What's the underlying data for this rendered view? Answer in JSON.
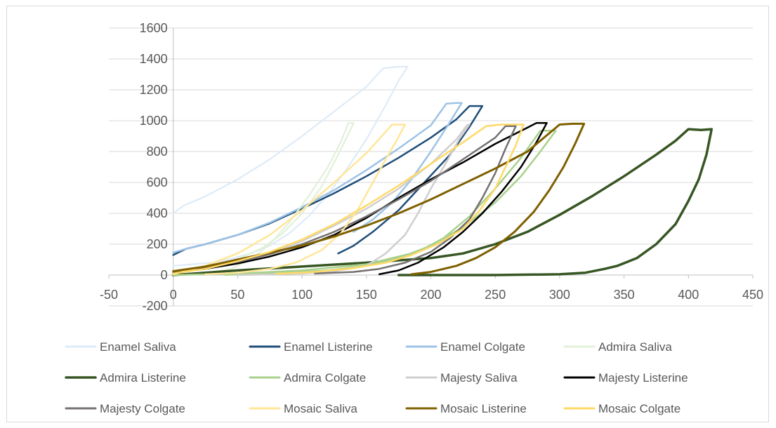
{
  "chart_data": {
    "type": "line",
    "title": "",
    "xlabel": "",
    "ylabel": "",
    "xlim": [
      -50,
      450
    ],
    "ylim": [
      -200,
      1600
    ],
    "x_ticks": [
      -50,
      0,
      50,
      100,
      150,
      200,
      250,
      300,
      350,
      400,
      450
    ],
    "y_ticks": [
      -200,
      0,
      200,
      400,
      600,
      800,
      1000,
      1200,
      1400,
      1600
    ],
    "grid": "horizontal",
    "legend_position": "bottom",
    "series": [
      {
        "name": "Enamel Saliva",
        "color": "#deebf7",
        "width": 2.2,
        "points": [
          [
            0,
            400
          ],
          [
            8,
            450
          ],
          [
            25,
            510
          ],
          [
            50,
            620
          ],
          [
            75,
            750
          ],
          [
            100,
            900
          ],
          [
            125,
            1060
          ],
          [
            150,
            1220
          ],
          [
            163,
            1340
          ],
          [
            175,
            1350
          ],
          [
            182,
            1350
          ],
          [
            175,
            1260
          ],
          [
            165,
            1100
          ],
          [
            150,
            880
          ],
          [
            135,
            690
          ],
          [
            120,
            520
          ],
          [
            105,
            380
          ],
          [
            90,
            270
          ],
          [
            75,
            190
          ],
          [
            60,
            140
          ],
          [
            45,
            105
          ],
          [
            30,
            80
          ],
          [
            15,
            70
          ],
          [
            0,
            60
          ]
        ]
      },
      {
        "name": "Enamel Listerine",
        "color": "#1f4e79",
        "width": 2.5,
        "points": [
          [
            0,
            130
          ],
          [
            10,
            170
          ],
          [
            25,
            200
          ],
          [
            50,
            260
          ],
          [
            75,
            335
          ],
          [
            100,
            430
          ],
          [
            125,
            530
          ],
          [
            150,
            640
          ],
          [
            175,
            760
          ],
          [
            200,
            890
          ],
          [
            220,
            1010
          ],
          [
            230,
            1095
          ],
          [
            240,
            1095
          ],
          [
            230,
            960
          ],
          [
            215,
            780
          ],
          [
            195,
            600
          ],
          [
            175,
            420
          ],
          [
            155,
            280
          ],
          [
            140,
            190
          ],
          [
            128,
            140
          ]
        ]
      },
      {
        "name": "Enamel Colgate",
        "color": "#9dc3e6",
        "width": 2.5,
        "points": [
          [
            0,
            145
          ],
          [
            10,
            170
          ],
          [
            25,
            200
          ],
          [
            50,
            260
          ],
          [
            75,
            340
          ],
          [
            100,
            440
          ],
          [
            125,
            550
          ],
          [
            150,
            680
          ],
          [
            175,
            820
          ],
          [
            200,
            970
          ],
          [
            212,
            1110
          ],
          [
            220,
            1115
          ],
          [
            224,
            1115
          ],
          [
            214,
            980
          ],
          [
            200,
            800
          ],
          [
            185,
            620
          ],
          [
            170,
            470
          ],
          [
            155,
            360
          ],
          [
            140,
            280
          ]
        ]
      },
      {
        "name": "Admira Saliva",
        "color": "#e2f0d9",
        "width": 2.2,
        "points": [
          [
            0,
            0
          ],
          [
            25,
            10
          ],
          [
            45,
            40
          ],
          [
            60,
            100
          ],
          [
            75,
            200
          ],
          [
            90,
            340
          ],
          [
            105,
            510
          ],
          [
            120,
            700
          ],
          [
            130,
            860
          ],
          [
            136,
            985
          ],
          [
            140,
            985
          ],
          [
            134,
            880
          ],
          [
            125,
            730
          ],
          [
            115,
            570
          ],
          [
            100,
            400
          ],
          [
            85,
            270
          ],
          [
            70,
            180
          ],
          [
            55,
            120
          ],
          [
            40,
            80
          ],
          [
            20,
            50
          ],
          [
            5,
            30
          ]
        ]
      },
      {
        "name": "Admira Listerine",
        "color": "#375623",
        "width": 3.5,
        "points": [
          [
            0,
            0
          ],
          [
            50,
            30
          ],
          [
            100,
            55
          ],
          [
            150,
            80
          ],
          [
            200,
            110
          ],
          [
            225,
            140
          ],
          [
            250,
            200
          ],
          [
            275,
            280
          ],
          [
            300,
            390
          ],
          [
            325,
            510
          ],
          [
            350,
            640
          ],
          [
            375,
            780
          ],
          [
            390,
            870
          ],
          [
            400,
            945
          ],
          [
            410,
            940
          ],
          [
            418,
            945
          ],
          [
            414,
            780
          ],
          [
            408,
            620
          ],
          [
            400,
            480
          ],
          [
            390,
            330
          ],
          [
            375,
            200
          ],
          [
            360,
            110
          ],
          [
            345,
            60
          ],
          [
            335,
            40
          ],
          [
            320,
            15
          ],
          [
            300,
            5
          ],
          [
            250,
            0
          ],
          [
            175,
            0
          ]
        ]
      },
      {
        "name": "Admira Colgate",
        "color": "#a9d18e",
        "width": 2.5,
        "points": [
          [
            0,
            0
          ],
          [
            50,
            10
          ],
          [
            100,
            30
          ],
          [
            150,
            70
          ],
          [
            190,
            150
          ],
          [
            210,
            240
          ],
          [
            230,
            380
          ],
          [
            250,
            560
          ],
          [
            270,
            760
          ],
          [
            285,
            935
          ],
          [
            292,
            935
          ],
          [
            297,
            935
          ],
          [
            285,
            800
          ],
          [
            270,
            640
          ],
          [
            250,
            470
          ],
          [
            225,
            310
          ],
          [
            200,
            190
          ],
          [
            175,
            110
          ],
          [
            150,
            60
          ],
          [
            120,
            30
          ],
          [
            80,
            10
          ],
          [
            40,
            2
          ]
        ]
      },
      {
        "name": "Majesty Saliva",
        "color": "#d0cece",
        "width": 2.5,
        "points": [
          [
            0,
            20
          ],
          [
            25,
            40
          ],
          [
            50,
            80
          ],
          [
            75,
            140
          ],
          [
            100,
            220
          ],
          [
            125,
            320
          ],
          [
            150,
            430
          ],
          [
            175,
            560
          ],
          [
            200,
            720
          ],
          [
            220,
            880
          ],
          [
            228,
            970
          ],
          [
            230,
            975
          ],
          [
            222,
            880
          ],
          [
            212,
            730
          ],
          [
            200,
            560
          ],
          [
            190,
            400
          ],
          [
            180,
            260
          ],
          [
            165,
            140
          ],
          [
            150,
            60
          ],
          [
            125,
            25
          ],
          [
            100,
            10
          ],
          [
            50,
            0
          ]
        ]
      },
      {
        "name": "Majesty Listerine",
        "color": "#000000",
        "width": 2.5,
        "points": [
          [
            0,
            15
          ],
          [
            25,
            40
          ],
          [
            50,
            75
          ],
          [
            75,
            120
          ],
          [
            100,
            180
          ],
          [
            125,
            260
          ],
          [
            150,
            370
          ],
          [
            175,
            500
          ],
          [
            200,
            620
          ],
          [
            225,
            730
          ],
          [
            250,
            850
          ],
          [
            275,
            955
          ],
          [
            282,
            985
          ],
          [
            290,
            985
          ],
          [
            282,
            860
          ],
          [
            270,
            700
          ],
          [
            255,
            540
          ],
          [
            240,
            400
          ],
          [
            225,
            280
          ],
          [
            210,
            180
          ],
          [
            190,
            80
          ],
          [
            175,
            30
          ],
          [
            160,
            5
          ]
        ]
      },
      {
        "name": "Majesty Colgate",
        "color": "#767171",
        "width": 2.5,
        "points": [
          [
            0,
            20
          ],
          [
            25,
            50
          ],
          [
            50,
            85
          ],
          [
            75,
            135
          ],
          [
            100,
            200
          ],
          [
            125,
            280
          ],
          [
            150,
            380
          ],
          [
            175,
            490
          ],
          [
            200,
            610
          ],
          [
            225,
            750
          ],
          [
            250,
            890
          ],
          [
            258,
            965
          ],
          [
            266,
            965
          ],
          [
            258,
            820
          ],
          [
            250,
            660
          ],
          [
            240,
            500
          ],
          [
            230,
            360
          ],
          [
            215,
            240
          ],
          [
            200,
            150
          ],
          [
            180,
            80
          ],
          [
            160,
            40
          ],
          [
            140,
            20
          ],
          [
            110,
            10
          ]
        ]
      },
      {
        "name": "Mosaic Saliva",
        "color": "#ffe699",
        "width": 2.5,
        "points": [
          [
            0,
            5
          ],
          [
            25,
            60
          ],
          [
            50,
            140
          ],
          [
            75,
            260
          ],
          [
            100,
            420
          ],
          [
            125,
            600
          ],
          [
            150,
            790
          ],
          [
            170,
            975
          ],
          [
            180,
            975
          ],
          [
            174,
            880
          ],
          [
            165,
            750
          ],
          [
            155,
            600
          ],
          [
            143,
            420
          ],
          [
            130,
            270
          ],
          [
            115,
            160
          ],
          [
            95,
            80
          ],
          [
            75,
            40
          ],
          [
            50,
            15
          ],
          [
            25,
            5
          ]
        ]
      },
      {
        "name": "Mosaic Listerine",
        "color": "#7f6000",
        "width": 3,
        "points": [
          [
            0,
            25
          ],
          [
            25,
            55
          ],
          [
            50,
            100
          ],
          [
            75,
            145
          ],
          [
            100,
            190
          ],
          [
            125,
            250
          ],
          [
            150,
            320
          ],
          [
            175,
            400
          ],
          [
            200,
            490
          ],
          [
            225,
            590
          ],
          [
            250,
            690
          ],
          [
            275,
            800
          ],
          [
            300,
            975
          ],
          [
            310,
            980
          ],
          [
            319,
            980
          ],
          [
            312,
            850
          ],
          [
            303,
            700
          ],
          [
            292,
            550
          ],
          [
            280,
            410
          ],
          [
            265,
            280
          ],
          [
            250,
            180
          ],
          [
            235,
            110
          ],
          [
            220,
            60
          ],
          [
            200,
            20
          ],
          [
            185,
            5
          ]
        ]
      },
      {
        "name": "Mosaic Colgate",
        "color": "#ffd966",
        "width": 2.5,
        "points": [
          [
            0,
            10
          ],
          [
            25,
            40
          ],
          [
            50,
            90
          ],
          [
            75,
            150
          ],
          [
            100,
            230
          ],
          [
            125,
            330
          ],
          [
            150,
            450
          ],
          [
            175,
            580
          ],
          [
            200,
            720
          ],
          [
            225,
            860
          ],
          [
            243,
            965
          ],
          [
            255,
            975
          ],
          [
            262,
            975
          ],
          [
            272,
            975
          ],
          [
            266,
            840
          ],
          [
            258,
            700
          ],
          [
            250,
            560
          ],
          [
            238,
            420
          ],
          [
            225,
            300
          ],
          [
            205,
            200
          ],
          [
            185,
            130
          ],
          [
            165,
            80
          ],
          [
            140,
            45
          ],
          [
            110,
            20
          ],
          [
            80,
            8
          ]
        ]
      }
    ]
  }
}
